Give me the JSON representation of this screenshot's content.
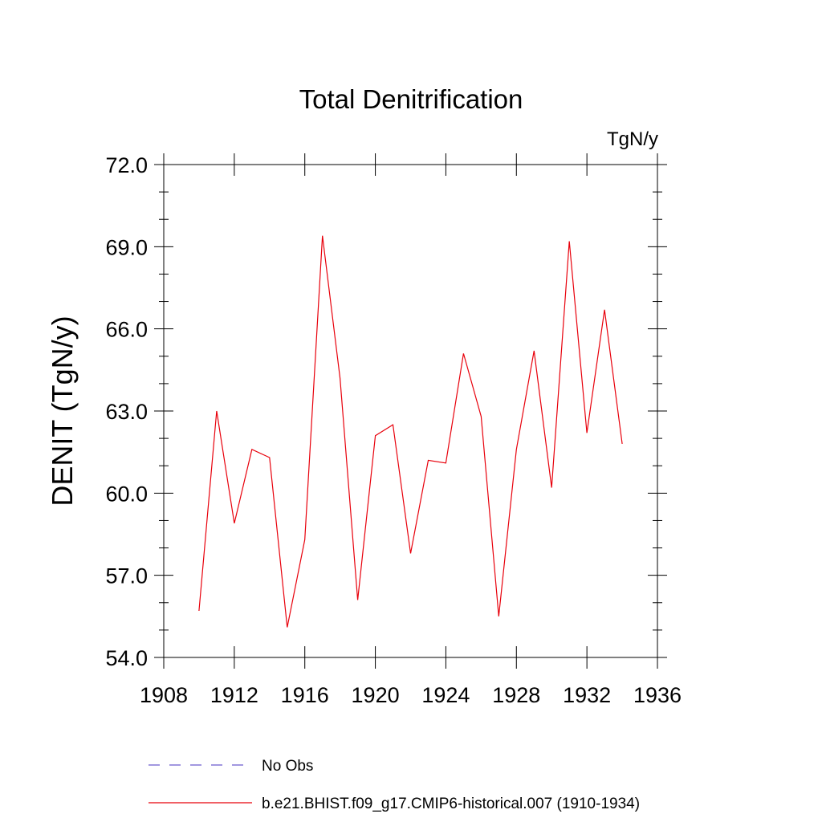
{
  "chart_data": {
    "type": "line",
    "title": "Total Denitrification",
    "units": "TgN/y",
    "ylabel": "DENIT  (TgN/y)",
    "xlabel": "",
    "xlim": [
      1908,
      1936
    ],
    "ylim": [
      54.0,
      72.0
    ],
    "xticks": [
      1908,
      1912,
      1916,
      1920,
      1924,
      1928,
      1932,
      1936
    ],
    "yticks": [
      "54.0",
      "57.0",
      "60.0",
      "63.0",
      "66.0",
      "69.0",
      "72.0"
    ],
    "grid": false,
    "legend_position": "bottom",
    "series": [
      {
        "name": "No Obs",
        "color": "#6a5acd",
        "dash": "dashed",
        "x": [],
        "y": []
      },
      {
        "name": "b.e21.BHIST.f09_g17.CMIP6-historical.007 (1910-1934)",
        "color": "#e8000b",
        "dash": "solid",
        "x": [
          1910,
          1911,
          1912,
          1913,
          1914,
          1915,
          1916,
          1917,
          1918,
          1919,
          1920,
          1921,
          1922,
          1923,
          1924,
          1925,
          1926,
          1927,
          1928,
          1929,
          1930,
          1931,
          1932,
          1933,
          1934
        ],
        "y": [
          55.7,
          63.0,
          58.9,
          61.6,
          61.3,
          55.1,
          58.3,
          69.4,
          64.2,
          56.1,
          62.1,
          62.5,
          57.8,
          61.2,
          61.1,
          65.1,
          62.8,
          55.5,
          61.6,
          65.2,
          60.2,
          69.2,
          62.2,
          66.7,
          61.8
        ]
      }
    ]
  }
}
